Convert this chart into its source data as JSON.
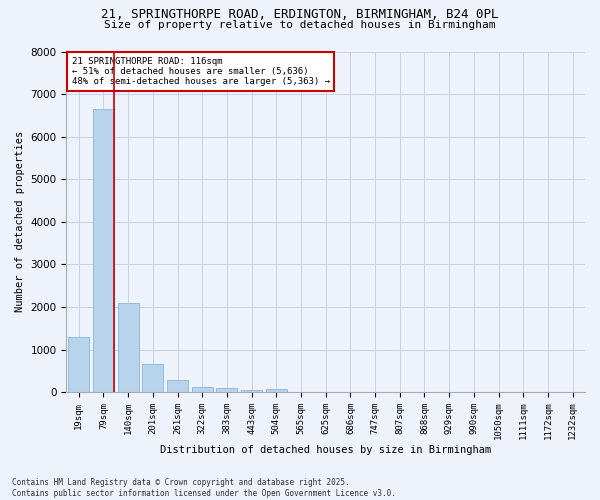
{
  "title1": "21, SPRINGTHORPE ROAD, ERDINGTON, BIRMINGHAM, B24 0PL",
  "title2": "Size of property relative to detached houses in Birmingham",
  "xlabel": "Distribution of detached houses by size in Birmingham",
  "ylabel": "Number of detached properties",
  "bar_color": "#b8d4ed",
  "bar_edge_color": "#7aafd4",
  "background_color": "#eef2fb",
  "grid_color": "#c8d0e8",
  "categories": [
    "19sqm",
    "79sqm",
    "140sqm",
    "201sqm",
    "261sqm",
    "322sqm",
    "383sqm",
    "443sqm",
    "504sqm",
    "565sqm",
    "625sqm",
    "686sqm",
    "747sqm",
    "807sqm",
    "868sqm",
    "929sqm",
    "990sqm",
    "1050sqm",
    "1111sqm",
    "1172sqm",
    "1232sqm"
  ],
  "values": [
    1300,
    6650,
    2100,
    650,
    290,
    120,
    90,
    60,
    70,
    0,
    0,
    0,
    0,
    0,
    0,
    0,
    0,
    0,
    0,
    0,
    0
  ],
  "ylim": [
    0,
    8000
  ],
  "yticks": [
    0,
    1000,
    2000,
    3000,
    4000,
    5000,
    6000,
    7000,
    8000
  ],
  "property_line_x": 1.43,
  "annotation_text": "21 SPRINGTHORPE ROAD: 116sqm\n← 51% of detached houses are smaller (5,636)\n48% of semi-detached houses are larger (5,363) →",
  "annotation_box_color": "#ffffff",
  "annotation_box_edge_color": "#cc0000",
  "vline_color": "#cc0000",
  "footer_text": "Contains HM Land Registry data © Crown copyright and database right 2025.\nContains public sector information licensed under the Open Government Licence v3.0."
}
